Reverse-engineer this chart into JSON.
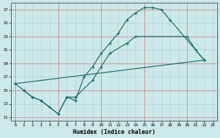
{
  "xlabel": "Humidex (Indice chaleur)",
  "bg_color": "#cce8e8",
  "line_color": "#1a6b6b",
  "grid_color_minor": "#aacccc",
  "grid_color_red": "#cc8888",
  "xlim": [
    -0.5,
    23.5
  ],
  "ylim": [
    10.5,
    28
  ],
  "xticks": [
    0,
    1,
    2,
    3,
    4,
    5,
    6,
    7,
    8,
    9,
    10,
    11,
    12,
    13,
    14,
    15,
    16,
    17,
    18,
    19,
    20,
    21,
    22,
    23
  ],
  "yticks": [
    11,
    13,
    15,
    17,
    19,
    21,
    23,
    25,
    27
  ],
  "red_x": [
    0,
    5,
    10,
    15,
    20
  ],
  "red_y": [
    11,
    15,
    19,
    23,
    27
  ],
  "line1_x": [
    0,
    1,
    2,
    3,
    4,
    5,
    6,
    7,
    8,
    9,
    10,
    11,
    12,
    13,
    14,
    15,
    16,
    17,
    18,
    22
  ],
  "line1_y": [
    16.0,
    15.0,
    14.0,
    13.5,
    12.5,
    11.5,
    14.0,
    13.5,
    17.0,
    18.5,
    20.5,
    22.0,
    23.5,
    25.5,
    26.5,
    27.3,
    27.3,
    27.0,
    25.5,
    19.5
  ],
  "line2_x": [
    1,
    2,
    3,
    5,
    6,
    7,
    9,
    10,
    11,
    13,
    14,
    20,
    21,
    22
  ],
  "line2_y": [
    15.0,
    14.0,
    13.5,
    11.5,
    14.0,
    14.0,
    16.5,
    18.5,
    20.5,
    22.0,
    23.0,
    23.0,
    21.0,
    19.5
  ],
  "line3_x": [
    0,
    22
  ],
  "line3_y": [
    16.0,
    19.5
  ]
}
